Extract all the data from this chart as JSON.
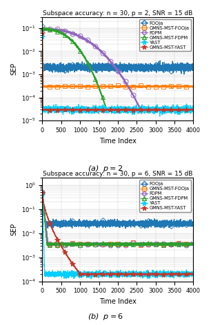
{
  "title1": "Subspace accuracy: n = 30, p = 2, SNR = 15 dB",
  "title2": "Subspace accuracy: n = 30, p = 6, SNR = 15 dB",
  "xlabel": "Time Index",
  "ylabel": "SEP",
  "caption1": "(a)  $p = 2$",
  "caption2": "(b)  $p = 6$",
  "legend_labels": [
    "FOOja",
    "GMNS-MST-FOOja",
    "FDPM",
    "GMNS-MST-FDPM",
    "YAST",
    "GMNS-MST-YAST"
  ],
  "colors": [
    "#1f77b4",
    "#ff7f0e",
    "#9467bd",
    "#2ca02c",
    "#00cfff",
    "#c0392b"
  ],
  "ylim1": [
    1e-05,
    0.3
  ],
  "ylim2": [
    0.0001,
    2.0
  ]
}
